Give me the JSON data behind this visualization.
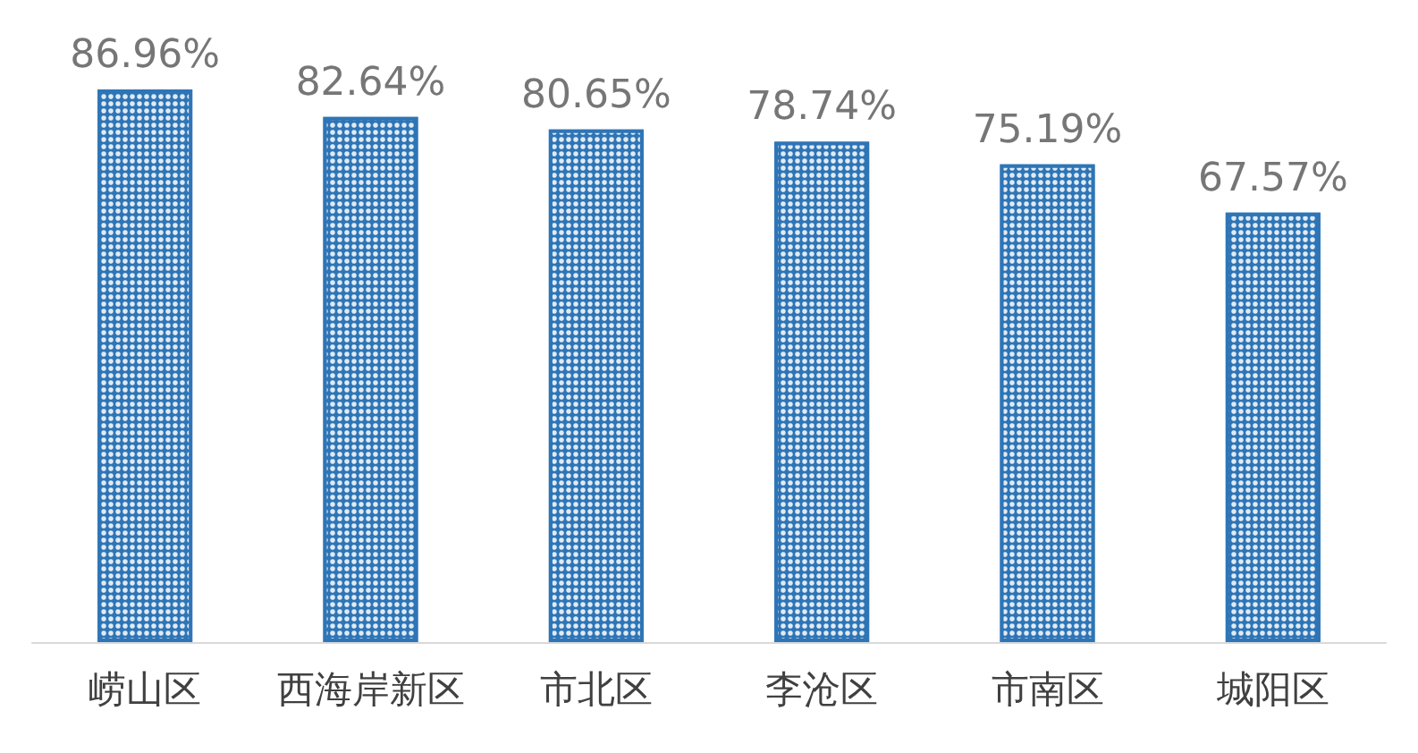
{
  "chart_data": {
    "type": "bar",
    "categories": [
      "崂山区",
      "西海岸新区",
      "市北区",
      "李沧区",
      "市南区",
      "城阳区"
    ],
    "values": [
      86.96,
      82.64,
      80.65,
      78.74,
      75.19,
      67.57
    ],
    "value_labels": [
      "86.96%",
      "82.64%",
      "80.65%",
      "78.74%",
      "75.19%",
      "67.57%"
    ],
    "color": "#2e75b6"
  }
}
